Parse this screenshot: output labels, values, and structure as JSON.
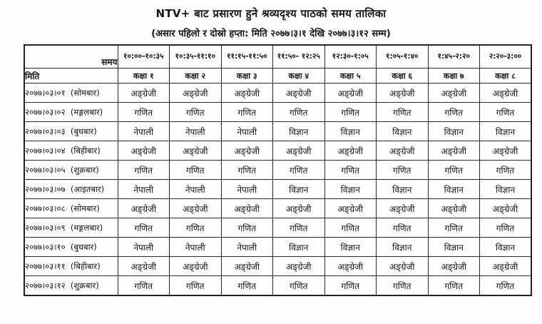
{
  "document": {
    "title": "NTV+ बाट प्रसारण हुने श्रव्यदृश्य पाठको समय तालिका",
    "subtitle": "(असार पहिलो र दोस्रो हप्ता: मिति २०७७।३।१ देखि २०७७।३।१२ सम्म)"
  },
  "table": {
    "corner_time_label": "समय",
    "corner_date_label": "मिति",
    "time_slots": [
      "१०:००-१०:३५",
      "१०:३५-११:१०",
      "११:१५-११:५०",
      "११:५०- १२:२५",
      "१२:३०-१:०५",
      "१:०५-१:४०",
      "१:४५-२:२०",
      "२:२०-३:००"
    ],
    "class_labels": [
      "कक्षा १",
      "कक्षा २",
      "कक्षा ३",
      "कक्षा ४",
      "कक्षा ५",
      "कक्षा ६",
      "कक्षा ७",
      "कक्षा ८"
    ],
    "rows": [
      {
        "date": "२०७७।०३।०१",
        "day": "(सोमबार)",
        "subjects": [
          "अङ्ग्रेजी",
          "अङ्ग्रेजी",
          "अङ्ग्रेजी",
          "अङ्ग्रेजी",
          "अङ्ग्रेजी",
          "अङ्ग्रेजी",
          "अङ्ग्रेजी",
          "अङ्ग्रेजी"
        ]
      },
      {
        "date": "२०७७।०३।०२",
        "day": "(मङ्गलबार)",
        "subjects": [
          "गणित",
          "गणित",
          "गणित",
          "गणित",
          "गणित",
          "गणित",
          "गणित",
          "गणित"
        ]
      },
      {
        "date": "२०७७।०३।०३",
        "day": "(बुधबार)",
        "subjects": [
          "नेपाली",
          "नेपाली",
          "नेपाली",
          "विज्ञान",
          "विज्ञान",
          "विज्ञान",
          "विज्ञान",
          "विज्ञान"
        ]
      },
      {
        "date": "२०७७।०३।०४",
        "day": "(बिहीबार)",
        "subjects": [
          "अङ्ग्रेजी",
          "अङ्ग्रेजी",
          "अङ्ग्रेजी",
          "अङ्ग्रेजी",
          "अङ्ग्रेजी",
          "अङ्ग्रेजी",
          "अङ्ग्रेजी",
          "अङ्ग्रेजी"
        ]
      },
      {
        "date": "२०७७।०३।०५",
        "day": "(शुक्रबार)",
        "subjects": [
          "गणित",
          "गणित",
          "गणित",
          "गणित",
          "गणित",
          "गणित",
          "गणित",
          "गणित"
        ]
      },
      {
        "date": "२०७७।०३।०७",
        "day": "(आइतबार)",
        "subjects": [
          "नेपाली",
          "नेपाली",
          "नेपाली",
          "विज्ञान",
          "विज्ञान",
          "विज्ञान",
          "विज्ञान",
          "विज्ञान"
        ]
      },
      {
        "date": "२०७७।०३।०८",
        "day": "(सोमबार)",
        "subjects": [
          "अङ्ग्रेजी",
          "अङ्ग्रेजी",
          "अङ्ग्रेजी",
          "अङ्ग्रेजी",
          "अङ्ग्रेजी",
          "अङ्ग्रेजी",
          "अङ्ग्रेजी",
          "अङ्ग्रेजी"
        ]
      },
      {
        "date": "२०७७।०३।०९",
        "day": "(मङ्गलबार)",
        "subjects": [
          "गणित",
          "गणित",
          "गणित",
          "गणित",
          "गणित",
          "गणित",
          "गणित",
          "गणित"
        ]
      },
      {
        "date": "२०७७।०३।१०",
        "day": "(बुधबार)",
        "subjects": [
          "नेपाली",
          "नेपाली",
          "नेपाली",
          "विज्ञान",
          "विज्ञान",
          "विज्ञान",
          "विज्ञान",
          "विज्ञान"
        ]
      },
      {
        "date": "२०७७।०३।११",
        "day": "(बिहीबार)",
        "subjects": [
          "अङ्ग्रेजी",
          "अङ्ग्रेजी",
          "अङ्ग्रेजी",
          "अङ्ग्रेजी",
          "अङ्ग्रेजी",
          "अङ्ग्रेजी",
          "अङ्ग्रेजी",
          "अङ्ग्रेजी"
        ]
      },
      {
        "date": "२०७७।०३।१२",
        "day": "(शुक्रबार)",
        "subjects": [
          "गणित",
          "गणित",
          "गणित",
          "गणित",
          "गणित",
          "गणित",
          "गणित",
          "गणित"
        ]
      }
    ]
  }
}
